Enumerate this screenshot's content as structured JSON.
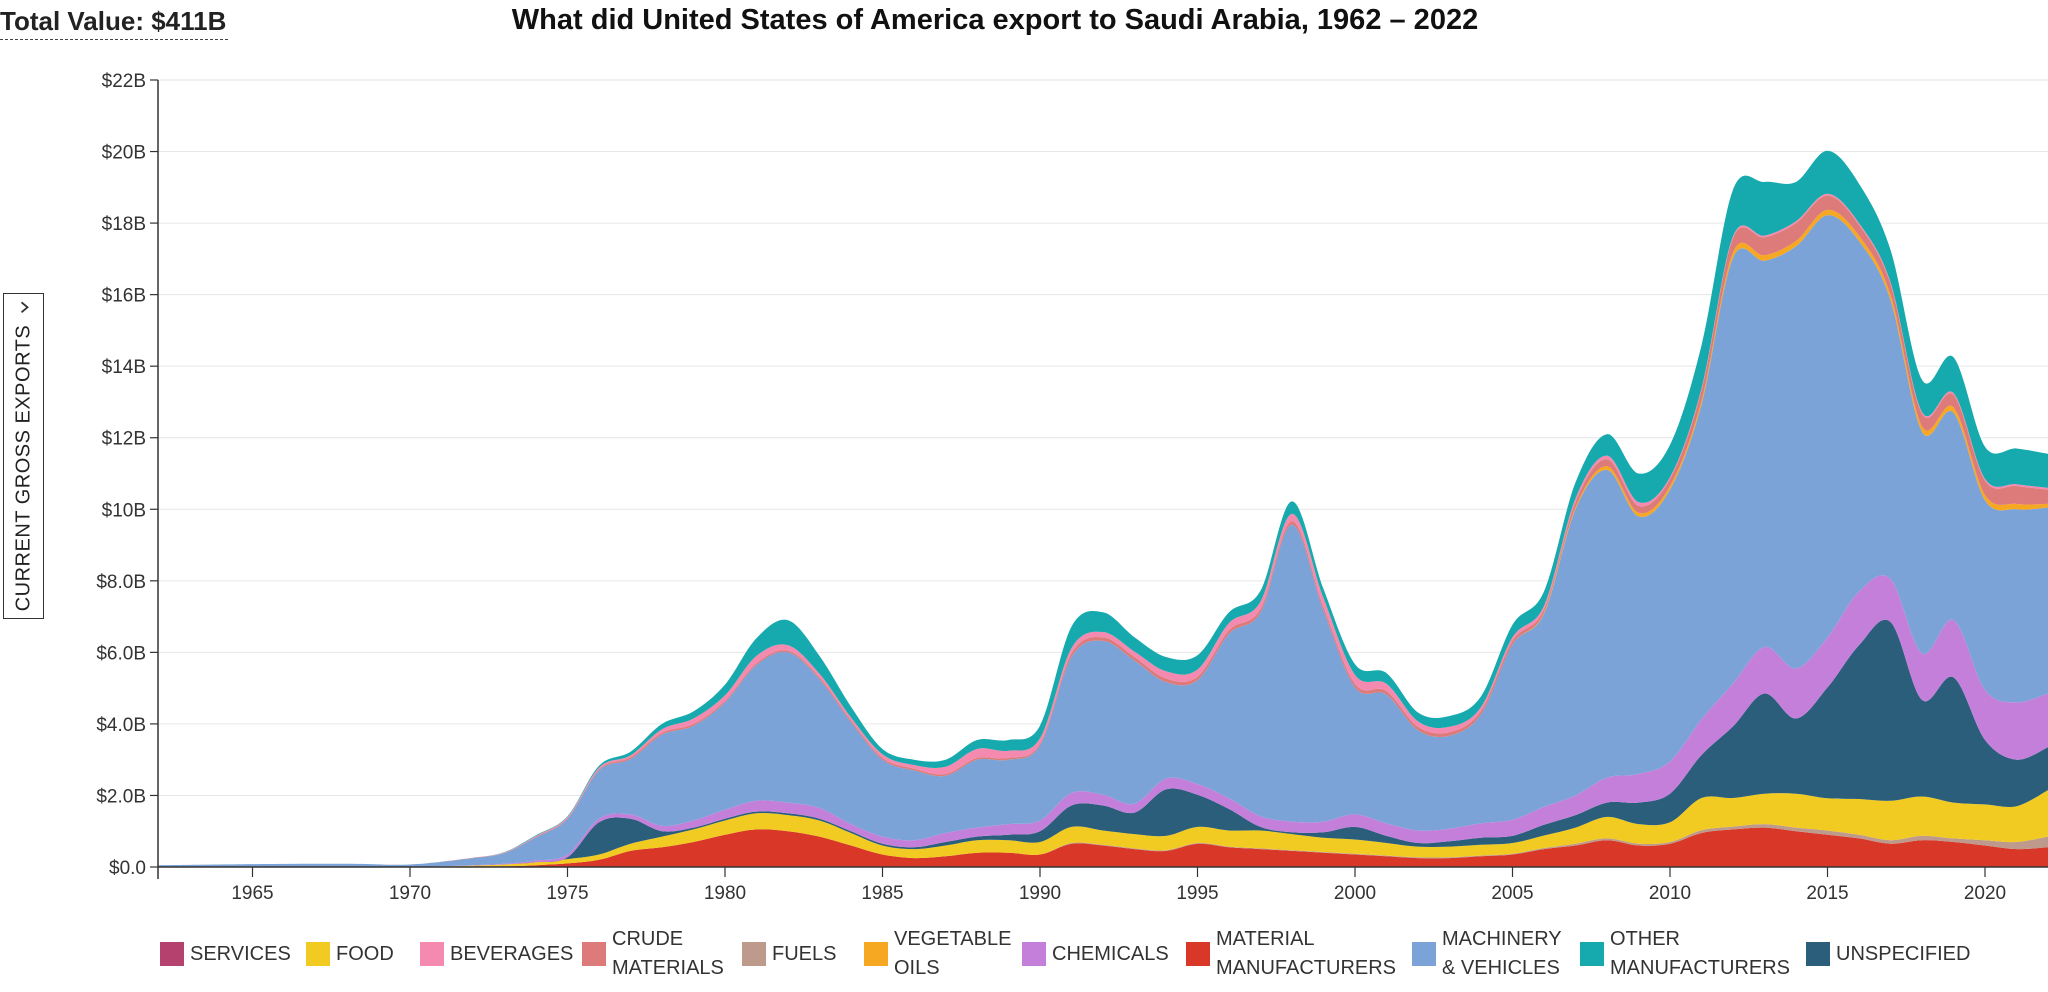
{
  "header": {
    "total_value": "Total Value: $411B",
    "title": "What did United States of America export to Saudi Arabia, 1962 – 2022",
    "measure_label": "CURRENT GROSS EXPORTS",
    "measure_icon": "chevron-down-icon"
  },
  "legend": [
    {
      "label": "SERVICES",
      "color": "#b5426e"
    },
    {
      "label": "FOOD",
      "color": "#f2cb22"
    },
    {
      "label": "BEVERAGES",
      "color": "#f48ab0"
    },
    {
      "label": "CRUDE\nMATERIALS",
      "color": "#dc7b79"
    },
    {
      "label": "FUELS",
      "color": "#bd9a8b"
    },
    {
      "label": "VEGETABLE\nOILS",
      "color": "#f6a823"
    },
    {
      "label": "CHEMICALS",
      "color": "#c47fdb"
    },
    {
      "label": "MATERIAL\nMANUFACTURERS",
      "color": "#d93828"
    },
    {
      "label": "MACHINERY\n& VEHICLES",
      "color": "#7ca3d8"
    },
    {
      "label": "OTHER\nMANUFACTURERS",
      "color": "#16aaae"
    },
    {
      "label": "UNSPECIFIED",
      "color": "#2a5e7b"
    }
  ],
  "chart_data": {
    "type": "area",
    "stacked": true,
    "title": "What did United States of America export to Saudi Arabia, 1962 – 2022",
    "ylabel": "CURRENT GROSS EXPORTS",
    "xlabel": "",
    "ylim": [
      0,
      22
    ],
    "xlim": [
      1962,
      2022
    ],
    "y_unit": "billion USD",
    "yticks": [
      0,
      2,
      4,
      6,
      8,
      10,
      12,
      14,
      16,
      18,
      20,
      22
    ],
    "ytick_labels": [
      "$0.0",
      "$2.0B",
      "$4.0B",
      "$6.0B",
      "$8.0B",
      "$10B",
      "$12B",
      "$14B",
      "$16B",
      "$18B",
      "$20B",
      "$22B"
    ],
    "xticks": [
      1965,
      1970,
      1975,
      1980,
      1985,
      1990,
      1995,
      2000,
      2005,
      2010,
      2015,
      2020
    ],
    "x": [
      1962,
      1965,
      1968,
      1970,
      1972,
      1973,
      1974,
      1975,
      1976,
      1977,
      1978,
      1979,
      1980,
      1981,
      1982,
      1983,
      1984,
      1985,
      1986,
      1987,
      1988,
      1989,
      1990,
      1991,
      1992,
      1993,
      1994,
      1995,
      1996,
      1997,
      1998,
      1999,
      2000,
      2001,
      2002,
      2003,
      2004,
      2005,
      2006,
      2007,
      2008,
      2009,
      2010,
      2011,
      2012,
      2013,
      2014,
      2015,
      2016,
      2017,
      2018,
      2019,
      2020,
      2021,
      2022
    ],
    "series": [
      {
        "name": "MATERIAL MANUFACTURERS",
        "values": [
          0,
          0,
          0,
          0,
          0.01,
          0.02,
          0.05,
          0.1,
          0.2,
          0.45,
          0.55,
          0.7,
          0.9,
          1.05,
          1.0,
          0.85,
          0.6,
          0.35,
          0.25,
          0.3,
          0.4,
          0.4,
          0.35,
          0.65,
          0.6,
          0.5,
          0.45,
          0.65,
          0.55,
          0.5,
          0.45,
          0.4,
          0.35,
          0.3,
          0.25,
          0.25,
          0.3,
          0.35,
          0.5,
          0.6,
          0.75,
          0.6,
          0.65,
          0.95,
          1.05,
          1.1,
          1.0,
          0.9,
          0.8,
          0.65,
          0.75,
          0.7,
          0.6,
          0.5,
          0.55
        ]
      },
      {
        "name": "FUELS",
        "values": [
          0,
          0,
          0,
          0,
          0,
          0,
          0,
          0,
          0,
          0,
          0,
          0,
          0,
          0,
          0,
          0,
          0,
          0,
          0,
          0,
          0,
          0,
          0,
          0.02,
          0.02,
          0.02,
          0.02,
          0.02,
          0.02,
          0.02,
          0.02,
          0.02,
          0.02,
          0.02,
          0.02,
          0.02,
          0.02,
          0.02,
          0.03,
          0.05,
          0.05,
          0.05,
          0.05,
          0.08,
          0.08,
          0.1,
          0.1,
          0.12,
          0.1,
          0.1,
          0.12,
          0.1,
          0.15,
          0.2,
          0.3
        ]
      },
      {
        "name": "FOOD",
        "values": [
          0,
          0,
          0,
          0,
          0.03,
          0.05,
          0.08,
          0.12,
          0.15,
          0.2,
          0.3,
          0.35,
          0.4,
          0.45,
          0.45,
          0.45,
          0.35,
          0.25,
          0.25,
          0.3,
          0.35,
          0.35,
          0.35,
          0.45,
          0.4,
          0.4,
          0.4,
          0.45,
          0.45,
          0.5,
          0.45,
          0.4,
          0.4,
          0.35,
          0.3,
          0.3,
          0.3,
          0.3,
          0.35,
          0.45,
          0.6,
          0.55,
          0.55,
          0.9,
          0.8,
          0.85,
          0.95,
          0.9,
          1.0,
          1.1,
          1.1,
          1.0,
          1.0,
          1.0,
          1.3
        ]
      },
      {
        "name": "UNSPECIFIED",
        "values": [
          0,
          0,
          0,
          0,
          0,
          0,
          0,
          0.05,
          0.9,
          0.7,
          0.15,
          0.05,
          0.05,
          0.05,
          0.05,
          0.05,
          0.05,
          0.05,
          0.05,
          0.1,
          0.1,
          0.15,
          0.3,
          0.6,
          0.7,
          0.6,
          1.3,
          0.9,
          0.6,
          0.1,
          0.05,
          0.15,
          0.35,
          0.2,
          0.1,
          0.15,
          0.2,
          0.2,
          0.3,
          0.35,
          0.4,
          0.6,
          0.8,
          1.2,
          2.0,
          2.8,
          2.1,
          3.1,
          4.3,
          5.0,
          2.7,
          3.5,
          1.8,
          1.3,
          1.2
        ]
      },
      {
        "name": "CHEMICALS",
        "values": [
          0,
          0,
          0,
          0,
          0.01,
          0.02,
          0.05,
          0.08,
          0.1,
          0.12,
          0.15,
          0.2,
          0.25,
          0.3,
          0.3,
          0.3,
          0.2,
          0.2,
          0.2,
          0.25,
          0.25,
          0.3,
          0.3,
          0.35,
          0.3,
          0.25,
          0.3,
          0.3,
          0.3,
          0.3,
          0.3,
          0.3,
          0.35,
          0.35,
          0.35,
          0.35,
          0.4,
          0.45,
          0.5,
          0.55,
          0.7,
          0.8,
          0.9,
          1.0,
          1.2,
          1.3,
          1.4,
          1.4,
          1.5,
          1.2,
          1.3,
          1.6,
          1.4,
          1.6,
          1.5
        ]
      },
      {
        "name": "MACHINERY & VEHICLES",
        "values": [
          0.05,
          0.08,
          0.09,
          0.07,
          0.2,
          0.3,
          0.65,
          1.0,
          1.35,
          1.55,
          2.55,
          2.65,
          3.0,
          3.8,
          4.2,
          3.6,
          2.85,
          2.15,
          1.95,
          1.6,
          1.9,
          1.8,
          2.1,
          3.8,
          4.3,
          4.0,
          2.7,
          2.9,
          4.6,
          5.7,
          8.3,
          5.9,
          3.55,
          3.6,
          2.8,
          2.6,
          3.05,
          4.9,
          5.4,
          8.0,
          8.6,
          7.2,
          7.6,
          8.8,
          11.9,
          10.8,
          11.8,
          11.8,
          9.8,
          7.8,
          6.2,
          5.8,
          5.3,
          5.4,
          5.2
        ]
      },
      {
        "name": "VEGETABLE OILS",
        "values": [
          0,
          0,
          0,
          0,
          0,
          0,
          0,
          0,
          0,
          0,
          0,
          0,
          0,
          0,
          0,
          0,
          0,
          0,
          0,
          0,
          0,
          0,
          0,
          0,
          0,
          0,
          0,
          0,
          0,
          0,
          0,
          0,
          0,
          0,
          0,
          0,
          0,
          0,
          0.02,
          0.05,
          0.1,
          0.1,
          0.1,
          0.1,
          0.15,
          0.15,
          0.15,
          0.15,
          0.15,
          0.15,
          0.15,
          0.15,
          0.15,
          0.15,
          0.1
        ]
      },
      {
        "name": "CRUDE MATERIALS",
        "values": [
          0,
          0,
          0,
          0,
          0.01,
          0.01,
          0.02,
          0.02,
          0.03,
          0.05,
          0.05,
          0.05,
          0.05,
          0.05,
          0.05,
          0.05,
          0.05,
          0.05,
          0.05,
          0.05,
          0.05,
          0.05,
          0.05,
          0.1,
          0.1,
          0.1,
          0.1,
          0.1,
          0.1,
          0.1,
          0.1,
          0.1,
          0.1,
          0.1,
          0.1,
          0.1,
          0.1,
          0.1,
          0.1,
          0.15,
          0.2,
          0.2,
          0.2,
          0.3,
          0.4,
          0.5,
          0.5,
          0.4,
          0.3,
          0.3,
          0.35,
          0.35,
          0.4,
          0.5,
          0.4
        ]
      },
      {
        "name": "BEVERAGES",
        "values": [
          0,
          0,
          0,
          0,
          0,
          0.01,
          0.02,
          0.03,
          0.05,
          0.05,
          0.1,
          0.15,
          0.15,
          0.2,
          0.15,
          0.1,
          0.08,
          0.1,
          0.1,
          0.2,
          0.25,
          0.2,
          0.15,
          0.15,
          0.15,
          0.15,
          0.2,
          0.2,
          0.2,
          0.2,
          0.2,
          0.25,
          0.25,
          0.2,
          0.15,
          0.15,
          0.1,
          0.1,
          0.1,
          0.1,
          0.1,
          0.1,
          0.05,
          0.05,
          0.05,
          0.05,
          0.05,
          0.05,
          0.05,
          0.05,
          0.05,
          0.05,
          0.05,
          0.05,
          0.05
        ]
      },
      {
        "name": "OTHER MANUFACTURERS",
        "values": [
          0,
          0,
          0,
          0,
          0,
          0.01,
          0.02,
          0.02,
          0.05,
          0.1,
          0.15,
          0.2,
          0.3,
          0.5,
          0.7,
          0.5,
          0.3,
          0.15,
          0.15,
          0.2,
          0.25,
          0.3,
          0.35,
          0.6,
          0.55,
          0.4,
          0.4,
          0.4,
          0.3,
          0.3,
          0.35,
          0.25,
          0.3,
          0.3,
          0.25,
          0.3,
          0.3,
          0.35,
          0.4,
          0.45,
          0.6,
          0.8,
          0.9,
          1.2,
          1.3,
          1.5,
          1.1,
          1.2,
          1.1,
          0.9,
          0.9,
          1.0,
          0.9,
          1.0,
          0.95
        ]
      },
      {
        "name": "SERVICES",
        "values": [
          0,
          0,
          0,
          0,
          0,
          0,
          0,
          0,
          0,
          0,
          0,
          0,
          0,
          0,
          0,
          0,
          0,
          0,
          0,
          0,
          0,
          0,
          0,
          0,
          0,
          0,
          0,
          0,
          0,
          0,
          0,
          0,
          0,
          0,
          0,
          0,
          0,
          0,
          0,
          0,
          0,
          0,
          0,
          0,
          0,
          0,
          0,
          0,
          0,
          0,
          0,
          0,
          0,
          0,
          0
        ]
      }
    ]
  }
}
